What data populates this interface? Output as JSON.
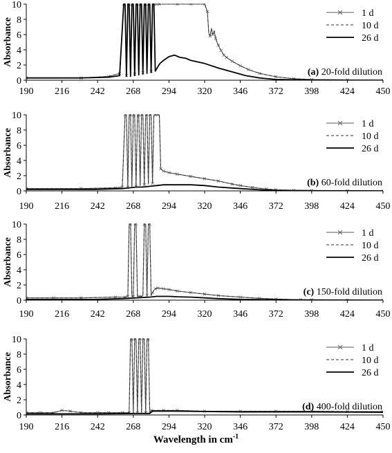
{
  "chart_data": [
    {
      "type": "line",
      "x_label": "",
      "y_label": "Absorbance",
      "xlim": [
        190,
        450
      ],
      "ylim": [
        0,
        10
      ],
      "x_ticks": [
        190,
        216,
        242,
        268,
        294,
        320,
        346,
        372,
        398,
        424,
        450
      ],
      "y_ticks": [
        0,
        2,
        4,
        6,
        8,
        10
      ],
      "annotation": {
        "letter": "(a)",
        "text": "20-fold dilution"
      },
      "legend_position": "top-right",
      "series": [
        {
          "name": "1 d",
          "style": "solid-x-marker",
          "x": [
            190,
            230,
            250,
            258,
            261,
            262,
            263,
            264,
            265,
            266,
            267,
            268,
            269,
            270,
            271,
            272,
            273,
            274,
            275,
            276,
            277,
            278,
            279,
            280,
            281,
            282,
            283,
            284,
            285,
            286,
            287,
            288,
            300,
            310,
            320,
            322,
            323,
            324,
            325,
            326,
            327,
            328,
            329,
            330,
            331,
            332,
            333,
            334,
            336,
            340,
            346,
            352,
            360,
            372,
            385,
            398,
            424,
            450
          ],
          "y": [
            0.3,
            0.3,
            0.5,
            0.9,
            10,
            10,
            0.6,
            10,
            10,
            0.7,
            10,
            10,
            0.8,
            10,
            10,
            0.9,
            10,
            10,
            1.0,
            10,
            10,
            1.1,
            10,
            10,
            1.2,
            10,
            10,
            10,
            10,
            10,
            10,
            10,
            10,
            10,
            10,
            9.0,
            6.2,
            5.8,
            6.8,
            6.0,
            6.5,
            5.5,
            5.0,
            4.6,
            4.2,
            3.9,
            3.6,
            3.3,
            3.0,
            2.5,
            1.9,
            1.4,
            0.9,
            0.45,
            0.2,
            0.1,
            0.05,
            0.0
          ]
        },
        {
          "name": "10 d",
          "style": "dashed",
          "x": [
            190,
            230,
            250,
            258,
            261,
            262,
            263,
            264,
            265,
            266,
            267,
            268,
            269,
            270,
            271,
            272,
            273,
            274,
            275,
            276,
            277,
            278,
            279,
            280,
            281,
            282,
            283,
            284,
            285,
            286,
            287,
            288,
            300,
            310,
            320,
            322,
            323,
            324,
            325,
            326,
            327,
            328,
            329,
            330,
            331,
            332,
            333,
            334,
            336,
            340,
            346,
            352,
            360,
            372,
            385,
            398,
            424,
            450
          ],
          "y": [
            0.3,
            0.3,
            0.5,
            0.9,
            10,
            10,
            0.6,
            10,
            10,
            0.7,
            10,
            10,
            0.8,
            10,
            10,
            0.9,
            10,
            10,
            1.0,
            10,
            10,
            1.1,
            10,
            10,
            1.2,
            10,
            10,
            10,
            10,
            10,
            10,
            10,
            10,
            10,
            10,
            9.0,
            6.2,
            5.8,
            6.8,
            6.0,
            6.5,
            5.5,
            5.0,
            4.6,
            4.2,
            3.9,
            3.6,
            3.3,
            3.0,
            2.5,
            1.9,
            1.4,
            0.9,
            0.45,
            0.2,
            0.1,
            0.05,
            0.0
          ]
        },
        {
          "name": "26 d",
          "style": "solid-thick",
          "x": [
            190,
            230,
            250,
            258,
            261,
            262,
            263,
            264,
            265,
            266,
            267,
            268,
            269,
            270,
            271,
            272,
            273,
            274,
            275,
            276,
            277,
            278,
            279,
            280,
            281,
            282,
            283,
            284,
            285,
            286,
            287,
            288,
            290,
            294,
            298,
            302,
            306,
            310,
            320,
            330,
            340,
            350,
            360,
            372,
            398,
            450
          ],
          "y": [
            0.3,
            0.3,
            0.4,
            0.6,
            10,
            10,
            0.5,
            10,
            10,
            0.5,
            10,
            10,
            0.6,
            10,
            10,
            0.7,
            10,
            10,
            0.8,
            10,
            10,
            0.9,
            10,
            10,
            1.0,
            10,
            10,
            1.2,
            1.5,
            1.8,
            2.1,
            2.3,
            2.6,
            3.1,
            3.3,
            3.0,
            2.9,
            2.6,
            2.2,
            1.6,
            1.1,
            0.6,
            0.3,
            0.1,
            0.02,
            0.0
          ]
        }
      ]
    },
    {
      "type": "line",
      "x_label": "",
      "y_label": "Absorbance",
      "xlim": [
        190,
        450
      ],
      "ylim": [
        0,
        10
      ],
      "x_ticks": [
        190,
        216,
        242,
        268,
        294,
        320,
        346,
        372,
        398,
        424,
        450
      ],
      "y_ticks": [
        0,
        2,
        4,
        6,
        8,
        10
      ],
      "annotation": {
        "letter": "(b)",
        "text": "60-fold dilution"
      },
      "legend_position": "top-right",
      "series": [
        {
          "name": "1 d",
          "style": "solid-x-marker",
          "x": [
            190,
            230,
            255,
            260,
            262,
            263,
            264,
            265,
            266,
            267,
            268,
            269,
            270,
            271,
            272,
            273,
            274,
            275,
            276,
            277,
            278,
            279,
            280,
            281,
            282,
            283,
            284,
            285,
            286,
            287,
            288,
            290,
            294,
            300,
            310,
            320,
            330,
            340,
            346,
            355,
            365,
            372,
            385,
            398,
            424,
            450
          ],
          "y": [
            0.3,
            0.3,
            0.4,
            0.5,
            10,
            10,
            0.5,
            10,
            10,
            0.6,
            10,
            10,
            0.6,
            10,
            10,
            0.7,
            10,
            10,
            0.8,
            10,
            10,
            0.9,
            10,
            10,
            1.0,
            10,
            10,
            10,
            10,
            10,
            2.9,
            2.6,
            2.4,
            2.2,
            1.9,
            1.6,
            1.3,
            0.9,
            0.7,
            0.45,
            0.25,
            0.15,
            0.08,
            0.05,
            0.02,
            0.0
          ]
        },
        {
          "name": "10 d",
          "style": "dashed",
          "x": [
            190,
            230,
            255,
            260,
            262,
            263,
            264,
            265,
            266,
            267,
            268,
            269,
            270,
            271,
            272,
            273,
            274,
            275,
            276,
            277,
            278,
            279,
            280,
            281,
            282,
            283,
            284,
            285,
            286,
            287,
            288,
            290,
            294,
            300,
            310,
            320,
            330,
            340,
            346,
            355,
            365,
            372,
            385,
            398,
            424,
            450
          ],
          "y": [
            0.3,
            0.3,
            0.4,
            0.5,
            10,
            10,
            0.5,
            10,
            10,
            0.6,
            10,
            10,
            0.6,
            10,
            10,
            0.7,
            10,
            10,
            0.8,
            10,
            10,
            0.9,
            10,
            10,
            1.0,
            10,
            10,
            10,
            10,
            10,
            2.9,
            2.6,
            2.4,
            2.2,
            1.9,
            1.6,
            1.3,
            0.9,
            0.7,
            0.45,
            0.25,
            0.15,
            0.08,
            0.05,
            0.02,
            0.0
          ]
        },
        {
          "name": "26 d",
          "style": "solid-thick",
          "x": [
            190,
            240,
            260,
            265,
            270,
            275,
            280,
            285,
            290,
            294,
            300,
            310,
            320,
            330,
            346,
            360,
            372,
            398,
            450
          ],
          "y": [
            0.2,
            0.2,
            0.3,
            0.4,
            0.5,
            0.5,
            0.6,
            0.7,
            0.8,
            0.8,
            0.8,
            0.8,
            0.7,
            0.5,
            0.3,
            0.15,
            0.05,
            0.02,
            0.0
          ]
        }
      ]
    },
    {
      "type": "line",
      "x_label": "",
      "y_label": "Absorbance",
      "xlim": [
        190,
        450
      ],
      "ylim": [
        0,
        10
      ],
      "x_ticks": [
        190,
        216,
        242,
        268,
        294,
        320,
        346,
        372,
        398,
        424,
        450
      ],
      "y_ticks": [
        0,
        2,
        4,
        6,
        8,
        10
      ],
      "annotation": {
        "letter": "(c)",
        "text": "150-fold dilution"
      },
      "legend_position": "top-right",
      "series": [
        {
          "name": "1 d",
          "style": "solid-x-marker",
          "x": [
            190,
            210,
            230,
            255,
            262,
            264,
            265,
            266,
            267,
            268,
            269,
            270,
            271,
            272,
            273,
            274,
            275,
            276,
            277,
            278,
            279,
            280,
            281,
            282,
            283,
            284,
            286,
            290,
            294,
            300,
            310,
            320,
            330,
            346,
            360,
            372,
            390,
            398,
            424,
            450
          ],
          "y": [
            0.3,
            0.3,
            0.3,
            0.4,
            0.4,
            0.5,
            10,
            10,
            0.5,
            0.5,
            10,
            10,
            0.5,
            0.5,
            0.5,
            0.5,
            0.6,
            10,
            10,
            0.6,
            10,
            10,
            0.6,
            1.0,
            1.3,
            1.5,
            1.6,
            1.5,
            1.4,
            1.2,
            1.0,
            0.8,
            0.6,
            0.4,
            0.25,
            0.15,
            0.05,
            0.05,
            0.02,
            0.0
          ]
        },
        {
          "name": "10 d",
          "style": "dashed",
          "x": [
            190,
            210,
            230,
            255,
            262,
            264,
            265,
            266,
            267,
            268,
            269,
            270,
            271,
            272,
            273,
            274,
            275,
            276,
            277,
            278,
            279,
            280,
            281,
            282,
            283,
            284,
            286,
            290,
            294,
            300,
            310,
            320,
            330,
            346,
            360,
            372,
            390,
            398,
            424,
            450
          ],
          "y": [
            0.3,
            0.3,
            0.3,
            0.4,
            0.4,
            0.5,
            10,
            10,
            0.5,
            0.5,
            10,
            10,
            0.5,
            0.5,
            0.5,
            0.5,
            0.6,
            10,
            10,
            0.6,
            10,
            10,
            0.6,
            1.0,
            1.3,
            1.5,
            1.6,
            1.5,
            1.4,
            1.2,
            1.0,
            0.8,
            0.6,
            0.4,
            0.25,
            0.15,
            0.05,
            0.05,
            0.02,
            0.0
          ]
        },
        {
          "name": "26 d",
          "style": "solid-thick",
          "x": [
            190,
            240,
            260,
            270,
            280,
            285,
            290,
            294,
            300,
            310,
            320,
            330,
            346,
            372,
            398,
            450
          ],
          "y": [
            0.1,
            0.1,
            0.2,
            0.3,
            0.4,
            0.5,
            0.5,
            0.5,
            0.45,
            0.4,
            0.3,
            0.2,
            0.1,
            0.05,
            0.02,
            0.0
          ]
        }
      ]
    },
    {
      "type": "line",
      "x_label": "Wavelength in cm-1",
      "y_label": "Absorbance",
      "xlim": [
        190,
        450
      ],
      "ylim": [
        0,
        10
      ],
      "x_ticks": [
        190,
        216,
        242,
        268,
        294,
        320,
        346,
        372,
        398,
        424,
        450
      ],
      "y_ticks": [
        0,
        2,
        4,
        6,
        8,
        10
      ],
      "annotation": {
        "letter": "(d)",
        "text": "400-fold dilution"
      },
      "legend_position": "top-right",
      "series": [
        {
          "name": "1 d",
          "style": "solid-x-marker",
          "x": [
            190,
            200,
            210,
            216,
            222,
            230,
            242,
            250,
            260,
            265,
            266,
            267,
            268,
            269,
            270,
            271,
            272,
            273,
            274,
            275,
            276,
            277,
            278,
            279,
            280,
            281,
            282,
            290,
            300,
            320,
            346,
            372,
            398,
            424,
            450
          ],
          "y": [
            0.3,
            0.3,
            0.3,
            0.6,
            0.5,
            0.3,
            0.3,
            0.3,
            0.3,
            0.3,
            10,
            10,
            0.3,
            10,
            10,
            0.3,
            10,
            10,
            0.3,
            10,
            10,
            0.3,
            10,
            10,
            0.3,
            0.6,
            0.6,
            0.6,
            0.6,
            0.5,
            0.5,
            0.5,
            0.5,
            0.45,
            0.45
          ]
        },
        {
          "name": "10 d",
          "style": "dashed",
          "x": [
            190,
            200,
            210,
            216,
            222,
            230,
            242,
            250,
            260,
            265,
            266,
            267,
            268,
            269,
            270,
            271,
            272,
            273,
            274,
            275,
            276,
            277,
            278,
            279,
            280,
            281,
            282,
            290,
            300,
            320,
            346,
            372,
            398,
            424,
            450
          ],
          "y": [
            0.3,
            0.3,
            0.3,
            0.6,
            0.5,
            0.3,
            0.3,
            0.3,
            0.3,
            0.3,
            10,
            10,
            0.3,
            10,
            10,
            0.3,
            10,
            10,
            0.3,
            10,
            10,
            0.3,
            10,
            10,
            0.3,
            0.6,
            0.6,
            0.6,
            0.6,
            0.5,
            0.5,
            0.5,
            0.5,
            0.45,
            0.45
          ]
        },
        {
          "name": "26 d",
          "style": "solid-thick",
          "x": [
            190,
            242,
            270,
            280,
            282,
            300,
            346,
            398,
            450
          ],
          "y": [
            0.15,
            0.15,
            0.2,
            0.2,
            0.5,
            0.5,
            0.4,
            0.4,
            0.35
          ]
        }
      ]
    }
  ],
  "figure": {
    "xlabel_main": "Wavelength in cm",
    "xlabel_sup": "-1"
  }
}
